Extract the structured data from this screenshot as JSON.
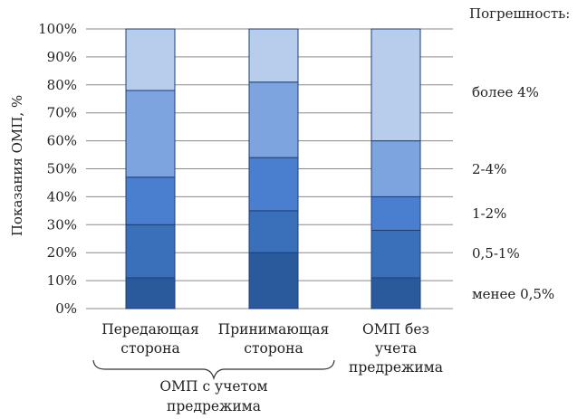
{
  "chart_data": {
    "type": "bar",
    "stacked": true,
    "ylabel": "Показания ОМП, %",
    "ylim": [
      0,
      100
    ],
    "yticks": [
      "0%",
      "10%",
      "20%",
      "30%",
      "40%",
      "50%",
      "60%",
      "70%",
      "80%",
      "90%",
      "100%"
    ],
    "grid": true,
    "categories": [
      [
        "Передающая",
        "сторона"
      ],
      [
        "Принимающая",
        "сторона"
      ],
      [
        "ОМП без",
        "учета",
        "предрежима"
      ]
    ],
    "group_label": [
      "ОМП с учетом",
      "предрежима"
    ],
    "legend_title": "Погрешность:",
    "legend_position": "right",
    "series": [
      {
        "name": "менее 0,5%",
        "color": "#2b5a9c",
        "values": [
          11,
          20,
          11
        ]
      },
      {
        "name": "0,5-1%",
        "color": "#3a6fba",
        "values": [
          19,
          15,
          17
        ]
      },
      {
        "name": "1-2%",
        "color": "#4a7fd0",
        "values": [
          17,
          19,
          12
        ]
      },
      {
        "name": "2-4%",
        "color": "#7da4de",
        "values": [
          31,
          27,
          20
        ]
      },
      {
        "name": "более 4%",
        "color": "#b8ccec",
        "values": [
          22,
          19,
          40
        ]
      }
    ]
  }
}
